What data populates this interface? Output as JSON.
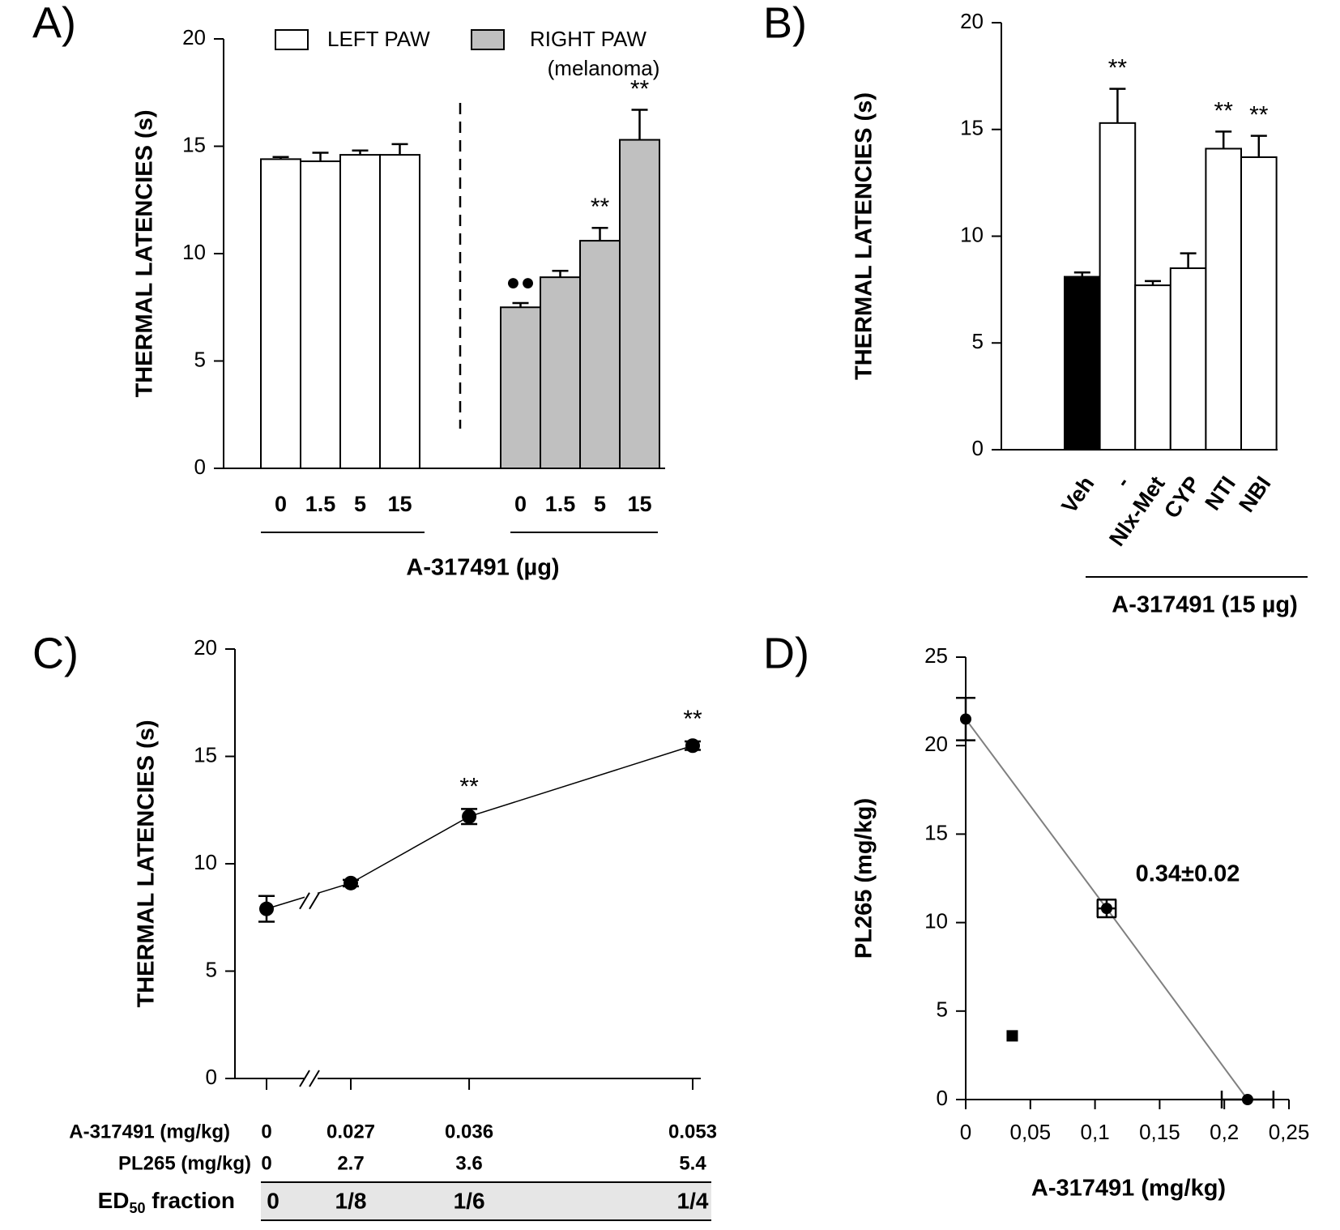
{
  "chart_data": [
    {
      "type": "bar",
      "panel_label": "A)",
      "ylabel": "THERMAL LATENCIES (s)",
      "xlabel": "A-317491 (µg)",
      "ylim": [
        0,
        20
      ],
      "yticks": [
        0,
        5,
        10,
        15,
        20
      ],
      "series": [
        {
          "name": "LEFT PAW",
          "color": "#ffffff",
          "categories": [
            "0",
            "1.5",
            "5",
            "15"
          ],
          "values": [
            14.4,
            14.3,
            14.6,
            14.6
          ],
          "errors": [
            0.1,
            0.4,
            0.2,
            0.5
          ]
        },
        {
          "name": "RIGHT PAW",
          "legend_note": "(melanoma)",
          "color": "#c0c0c0",
          "categories": [
            "0",
            "1.5",
            "5",
            "15"
          ],
          "values": [
            7.5,
            8.9,
            10.6,
            15.3
          ],
          "errors": [
            0.2,
            0.3,
            0.6,
            1.4
          ],
          "annotations": [
            {
              "index": 0,
              "text": "●●"
            },
            {
              "index": 2,
              "text": "**"
            },
            {
              "index": 3,
              "text": "**"
            }
          ]
        }
      ]
    },
    {
      "type": "bar",
      "panel_label": "B)",
      "ylabel": "THERMAL LATENCIES (s)",
      "xlabel": "A-317491 (15 µg)",
      "ylim": [
        0,
        20
      ],
      "yticks": [
        0,
        5,
        10,
        15,
        20
      ],
      "categories": [
        "Veh",
        "-",
        "Nlx-Met",
        "CYP",
        "NTI",
        "NBI"
      ],
      "values": [
        8.1,
        15.3,
        7.7,
        8.5,
        14.1,
        13.7
      ],
      "errors": [
        0.2,
        1.6,
        0.2,
        0.7,
        0.8,
        1.0
      ],
      "colors": [
        "#000000",
        "#ffffff",
        "#ffffff",
        "#ffffff",
        "#ffffff",
        "#ffffff"
      ],
      "annotations": [
        {
          "index": 1,
          "text": "**"
        },
        {
          "index": 4,
          "text": "**"
        },
        {
          "index": 5,
          "text": "**"
        }
      ]
    },
    {
      "type": "line",
      "panel_label": "C)",
      "ylabel": "THERMAL LATENCIES (s)",
      "ylim": [
        0,
        20
      ],
      "yticks": [
        0,
        5,
        10,
        15,
        20
      ],
      "xlim": [
        0.027,
        0.053
      ],
      "x_break": true,
      "color": "#000000",
      "x": [
        0,
        0.027,
        0.036,
        0.053
      ],
      "values": [
        7.9,
        9.1,
        12.2,
        15.5
      ],
      "errors": [
        0.6,
        0.15,
        0.35,
        0.2
      ],
      "annotations": [
        {
          "index": 2,
          "text": "**"
        },
        {
          "index": 3,
          "text": "**"
        }
      ],
      "table": {
        "rows": [
          {
            "label": "A-317491 (mg/kg)",
            "cells": [
              "0",
              "0.027",
              "0.036",
              "0.053"
            ]
          },
          {
            "label": "PL265 (mg/kg)",
            "cells": [
              "0",
              "2.7",
              "3.6",
              "5.4"
            ]
          },
          {
            "label": "ED",
            "label_sub": "50",
            "label_tail": " fraction",
            "cells": [
              "0",
              "1/8",
              "1/6",
              "1/4"
            ]
          }
        ]
      }
    },
    {
      "type": "scatter",
      "panel_label": "D)",
      "xlabel": "A-317491 (mg/kg)",
      "ylabel": "PL265 (mg/kg)",
      "xlim": [
        0,
        0.25
      ],
      "ylim": [
        0,
        25
      ],
      "xticks": [
        0,
        {
          "value": 0.05,
          "label": "0,05"
        },
        {
          "value": 0.1,
          "label": "0,1"
        },
        {
          "value": 0.15,
          "label": "0,15"
        },
        {
          "value": 0.2,
          "label": "0,2"
        },
        {
          "value": 0.25,
          "label": "0,25"
        }
      ],
      "yticks": [
        0,
        5,
        10,
        15,
        20,
        25
      ],
      "series": [
        {
          "marker": "circle",
          "color": "#000000",
          "line": true,
          "line_color": "#808080",
          "x": [
            0,
            0.109,
            0.218
          ],
          "values": [
            21.5,
            10.8,
            0
          ],
          "x_errors": [
            null,
            0.007,
            0.02
          ],
          "y_errors": [
            1.2,
            0.5,
            null
          ]
        },
        {
          "marker": "square",
          "color": "#000000",
          "x": [
            0.036
          ],
          "values": [
            3.6
          ]
        }
      ],
      "annotations": [
        {
          "text": "0.34±0.02"
        }
      ]
    }
  ]
}
